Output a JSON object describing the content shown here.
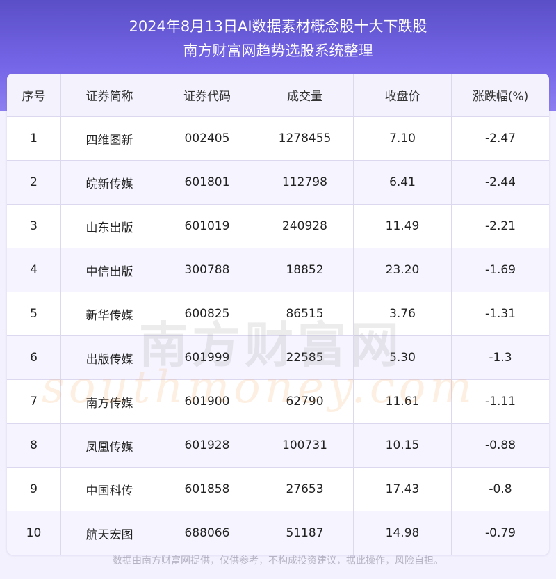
{
  "header": {
    "title": "2024年8月13日AI数据素材概念股十大下跌股",
    "subtitle": "南方财富网趋势选股系统整理"
  },
  "table": {
    "columns": [
      "序号",
      "证券简称",
      "证券代码",
      "成交量",
      "收盘价",
      "涨跌幅(%)"
    ],
    "rows": [
      [
        "1",
        "四维图新",
        "002405",
        "1278455",
        "7.10",
        "-2.47"
      ],
      [
        "2",
        "皖新传媒",
        "601801",
        "112798",
        "6.41",
        "-2.44"
      ],
      [
        "3",
        "山东出版",
        "601019",
        "240928",
        "11.49",
        "-2.21"
      ],
      [
        "4",
        "中信出版",
        "300788",
        "18852",
        "23.20",
        "-1.69"
      ],
      [
        "5",
        "新华传媒",
        "600825",
        "86515",
        "3.76",
        "-1.31"
      ],
      [
        "6",
        "出版传媒",
        "601999",
        "22585",
        "5.30",
        "-1.3"
      ],
      [
        "7",
        "南方传媒",
        "601900",
        "62790",
        "11.61",
        "-1.11"
      ],
      [
        "8",
        "凤凰传媒",
        "601928",
        "100731",
        "10.15",
        "-0.88"
      ],
      [
        "9",
        "中国科传",
        "601858",
        "27653",
        "17.43",
        "-0.8"
      ],
      [
        "10",
        "航天宏图",
        "688066",
        "51187",
        "14.98",
        "-0.79"
      ]
    ]
  },
  "watermark": {
    "cn": "南方财富网",
    "en": "southmoney.com"
  },
  "footer": "数据由南方财富网提供，仅供参考，不构成投资建议，据此操作，风险自担。",
  "colors": {
    "banner": "#6a5cdc",
    "row_alt": "#f6f4fe",
    "border": "#dcd8ef"
  }
}
